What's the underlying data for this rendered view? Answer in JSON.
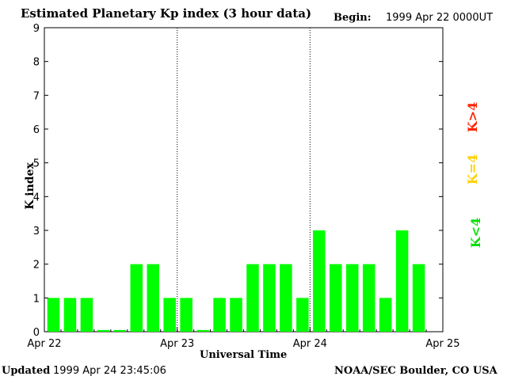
{
  "title": "Estimated Planetary Kp index (3 hour data)",
  "begin_label": "Begin:",
  "begin_value": "1999 Apr 22 0000UT",
  "updated_label": "Updated",
  "updated_value": "1999 Apr 24 23:45:06",
  "credit": "NOAA/SEC Boulder, CO USA",
  "colors": {
    "low": "#00ff00",
    "equal": "#ffd700",
    "high": "#ff2000"
  },
  "legend": {
    "low": "K<4",
    "equal": "K=4",
    "high": "K>4"
  },
  "chart_data": {
    "type": "bar",
    "title": "Estimated Planetary Kp index (3 hour data)",
    "xlabel": "Universal Time",
    "ylabel": "K index",
    "ylim": [
      0,
      9
    ],
    "yticks": [
      "0",
      "1",
      "2",
      "3",
      "4",
      "5",
      "6",
      "7",
      "8",
      "9"
    ],
    "xticks": [
      "Apr 22",
      "Apr 23",
      "Apr 24",
      "Apr 25"
    ],
    "interval_hours": 3,
    "values": [
      1,
      1,
      1,
      0.05,
      0.05,
      2,
      2,
      1,
      1,
      0.05,
      1,
      1,
      2,
      2,
      2,
      1,
      3,
      2,
      2,
      2,
      1,
      3,
      2
    ]
  }
}
